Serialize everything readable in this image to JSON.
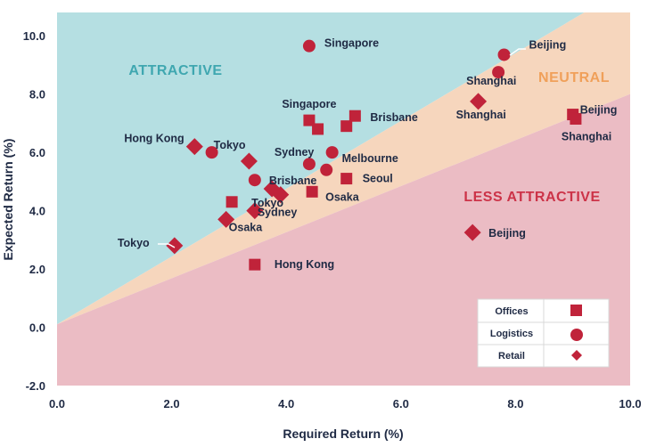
{
  "chart_data": {
    "type": "scatter",
    "xlabel": "Required Return (%)",
    "ylabel": "Expected Return (%)",
    "xlim": [
      0,
      10
    ],
    "ylim": [
      -2,
      10.8
    ],
    "x_ticks": [
      "0.0",
      "2.0",
      "4.0",
      "6.0",
      "8.0",
      "10.0"
    ],
    "y_ticks": [
      "-2.0",
      "0.0",
      "2.0",
      "4.0",
      "6.0",
      "8.0",
      "10.0"
    ],
    "zones": [
      {
        "name": "ATTRACTIVE",
        "color": "#b5dfe2",
        "label_color": "#3fa7b0"
      },
      {
        "name": "NEUTRAL",
        "color": "#f6d6bd",
        "label_color": "#f0a05a"
      },
      {
        "name": "LESS ATTRACTIVE",
        "color": "#ebbcc4",
        "label_color": "#cc3348"
      }
    ],
    "grid": false,
    "legend_position": "bottom-right",
    "marker_color": "#c0233a",
    "series": [
      {
        "name": "Offices",
        "marker": "square",
        "points": [
          {
            "x": 4.4,
            "y": 7.1,
            "label": "Singapore"
          },
          {
            "x": 4.55,
            "y": 6.8,
            "label": ""
          },
          {
            "x": 5.05,
            "y": 6.9,
            "label": ""
          },
          {
            "x": 5.2,
            "y": 7.25,
            "label": "Brisbane"
          },
          {
            "x": 5.05,
            "y": 5.1,
            "label": "Seoul"
          },
          {
            "x": 4.45,
            "y": 4.65,
            "label": "Osaka"
          },
          {
            "x": 3.05,
            "y": 4.3,
            "label": "Tokyo"
          },
          {
            "x": 3.45,
            "y": 2.15,
            "label": "Hong Kong"
          },
          {
            "x": 9.0,
            "y": 7.3,
            "label": "Beijing"
          },
          {
            "x": 9.05,
            "y": 7.15,
            "label": "Shanghai"
          }
        ]
      },
      {
        "name": "Logistics",
        "marker": "circle",
        "points": [
          {
            "x": 4.4,
            "y": 9.65,
            "label": "Singapore"
          },
          {
            "x": 7.8,
            "y": 9.35,
            "label": "Beijing"
          },
          {
            "x": 7.7,
            "y": 8.75,
            "label": "Shanghai"
          },
          {
            "x": 2.7,
            "y": 6.0,
            "label": "Tokyo"
          },
          {
            "x": 4.8,
            "y": 6.0,
            "label": "Melbourne"
          },
          {
            "x": 4.4,
            "y": 5.6,
            "label": "Sydney"
          },
          {
            "x": 4.7,
            "y": 5.4,
            "label": ""
          },
          {
            "x": 3.45,
            "y": 5.05,
            "label": "Brisbane"
          }
        ]
      },
      {
        "name": "Retail",
        "marker": "diamond",
        "points": [
          {
            "x": 2.4,
            "y": 6.2,
            "label": "Hong Kong"
          },
          {
            "x": 3.35,
            "y": 5.7,
            "label": ""
          },
          {
            "x": 3.75,
            "y": 4.75,
            "label": ""
          },
          {
            "x": 3.9,
            "y": 4.55,
            "label": ""
          },
          {
            "x": 3.45,
            "y": 4.0,
            "label": "Sydney"
          },
          {
            "x": 2.95,
            "y": 3.7,
            "label": "Osaka"
          },
          {
            "x": 2.05,
            "y": 2.8,
            "label": "Tokyo"
          },
          {
            "x": 7.35,
            "y": 7.75,
            "label": "Shanghai"
          },
          {
            "x": 7.25,
            "y": 3.25,
            "label": "Beijing"
          }
        ]
      }
    ],
    "legend": [
      {
        "label": "Offices",
        "marker": "square"
      },
      {
        "label": "Logistics",
        "marker": "circle"
      },
      {
        "label": "Retail",
        "marker": "diamond"
      }
    ]
  }
}
